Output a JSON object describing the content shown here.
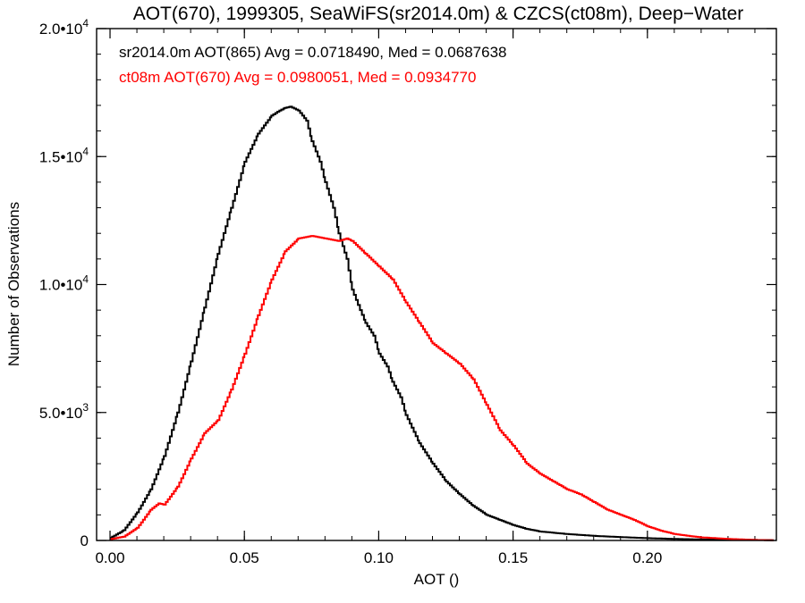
{
  "chart_data": {
    "type": "line",
    "title": "AOT(670), 1999305, SeaWiFS(sr2014.0m) & CZCS(ct08m), Deep−Water",
    "xlabel": "AOT ()",
    "ylabel": "Number of Observations",
    "xlim": [
      -0.005,
      0.248
    ],
    "ylim": [
      0,
      20000
    ],
    "x_ticks": [
      {
        "value": 0.0,
        "label": "0.00"
      },
      {
        "value": 0.05,
        "label": "0.05"
      },
      {
        "value": 0.1,
        "label": "0.10"
      },
      {
        "value": 0.15,
        "label": "0.15"
      },
      {
        "value": 0.2,
        "label": "0.20"
      }
    ],
    "y_ticks": [
      {
        "value": 0,
        "mant": "0",
        "exp": ""
      },
      {
        "value": 5000,
        "mant": "5.0•10",
        "exp": "3"
      },
      {
        "value": 10000,
        "mant": "1.0•10",
        "exp": "4"
      },
      {
        "value": 15000,
        "mant": "1.5•10",
        "exp": "4"
      },
      {
        "value": 20000,
        "mant": "2.0•10",
        "exp": "4"
      }
    ],
    "x_minor_step": 0.01,
    "y_minor_step": 1000,
    "annotations": [
      {
        "text": "sr2014.0m AOT(865) Avg = 0.0718490, Med = 0.0687638",
        "color": "#000000"
      },
      {
        "text": "ct08m AOT(670) Avg = 0.0980051, Med = 0.0934770",
        "color": "#ff0000"
      }
    ],
    "series": [
      {
        "color": "#000000",
        "x": [
          0.0,
          0.005,
          0.01,
          0.015,
          0.02,
          0.025,
          0.03,
          0.035,
          0.04,
          0.045,
          0.05,
          0.055,
          0.06,
          0.063,
          0.065,
          0.067,
          0.07,
          0.073,
          0.075,
          0.078,
          0.08,
          0.083,
          0.085,
          0.088,
          0.09,
          0.093,
          0.095,
          0.098,
          0.1,
          0.103,
          0.105,
          0.108,
          0.11,
          0.115,
          0.12,
          0.125,
          0.13,
          0.135,
          0.14,
          0.145,
          0.15,
          0.155,
          0.16,
          0.17,
          0.18,
          0.19,
          0.2,
          0.21,
          0.22,
          0.23,
          0.24,
          0.247
        ],
        "y": [
          100,
          400,
          1100,
          2000,
          3300,
          5000,
          7000,
          9100,
          11200,
          13000,
          14800,
          15900,
          16600,
          16800,
          16900,
          16950,
          16800,
          16400,
          15600,
          14800,
          14000,
          13000,
          12000,
          11000,
          9800,
          9000,
          8500,
          8000,
          7300,
          6800,
          6200,
          5600,
          4900,
          3800,
          3000,
          2300,
          1800,
          1350,
          1000,
          800,
          600,
          450,
          350,
          250,
          180,
          130,
          90,
          60,
          40,
          30,
          20,
          10
        ]
      },
      {
        "color": "#ff0000",
        "x": [
          0.0,
          0.005,
          0.01,
          0.015,
          0.018,
          0.02,
          0.025,
          0.03,
          0.035,
          0.04,
          0.045,
          0.05,
          0.055,
          0.06,
          0.065,
          0.07,
          0.075,
          0.08,
          0.085,
          0.088,
          0.09,
          0.095,
          0.1,
          0.105,
          0.11,
          0.115,
          0.12,
          0.125,
          0.13,
          0.135,
          0.14,
          0.145,
          0.15,
          0.155,
          0.16,
          0.165,
          0.17,
          0.175,
          0.18,
          0.185,
          0.19,
          0.195,
          0.2,
          0.205,
          0.21,
          0.215,
          0.22,
          0.23,
          0.24,
          0.247
        ],
        "y": [
          50,
          150,
          500,
          1200,
          1450,
          1400,
          2100,
          3200,
          4200,
          4700,
          5900,
          7300,
          8800,
          10200,
          11300,
          11800,
          11900,
          11800,
          11700,
          11800,
          11700,
          11200,
          10700,
          10200,
          9300,
          8500,
          7700,
          7300,
          6900,
          6300,
          5300,
          4300,
          3700,
          3000,
          2600,
          2300,
          2000,
          1800,
          1500,
          1200,
          1000,
          800,
          550,
          380,
          250,
          180,
          120,
          60,
          20,
          10
        ]
      }
    ]
  }
}
